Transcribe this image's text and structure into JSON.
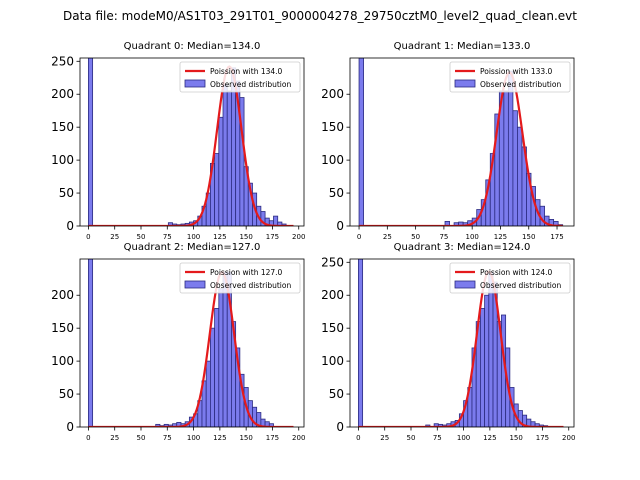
{
  "suptitle": "Data file: modeM0/AS1T03_291T01_9000004278_29750cztM0_level2_quad_clean.evt",
  "colors": {
    "bar_fill": "#7b7bed",
    "bar_edge": "#2b2b80",
    "fit_line": "#e41a1c"
  },
  "chart_data": [
    {
      "type": "bar",
      "title": "Quadrant 0: Median=134.0",
      "legend": {
        "fit_label": "Poission with 134.0",
        "hist_label": "Observed distribution",
        "position": "top-right"
      },
      "xlim": [
        -8,
        205
      ],
      "ylim": [
        0,
        255
      ],
      "xticks": [
        0,
        25,
        50,
        75,
        100,
        125,
        150,
        175,
        200
      ],
      "yticks": [
        0,
        50,
        100,
        150,
        200,
        250
      ],
      "bin_width": 4,
      "fit": {
        "mean": 134,
        "sigma": 11.6,
        "peak": 242
      },
      "bins": [
        [
          0,
          255
        ],
        [
          76,
          5
        ],
        [
          80,
          3
        ],
        [
          84,
          2
        ],
        [
          88,
          3
        ],
        [
          92,
          4
        ],
        [
          96,
          6
        ],
        [
          100,
          8
        ],
        [
          104,
          15
        ],
        [
          108,
          30
        ],
        [
          112,
          50
        ],
        [
          116,
          95
        ],
        [
          120,
          110
        ],
        [
          124,
          165
        ],
        [
          128,
          215
        ],
        [
          132,
          205
        ],
        [
          136,
          240
        ],
        [
          140,
          220
        ],
        [
          144,
          195
        ],
        [
          148,
          90
        ],
        [
          152,
          65
        ],
        [
          156,
          50
        ],
        [
          160,
          30
        ],
        [
          164,
          22
        ],
        [
          168,
          12
        ],
        [
          172,
          8
        ],
        [
          176,
          15
        ],
        [
          180,
          6
        ],
        [
          184,
          3
        ]
      ]
    },
    {
      "type": "bar",
      "title": "Quadrant 1: Median=133.0",
      "legend": {
        "fit_label": "Poission with 133.0",
        "hist_label": "Observed distribution",
        "position": "top-right"
      },
      "xlim": [
        -8,
        190
      ],
      "ylim": [
        0,
        255
      ],
      "xticks": [
        0,
        25,
        50,
        75,
        100,
        125,
        150,
        175
      ],
      "yticks": [
        0,
        50,
        100,
        150,
        200
      ],
      "bin_width": 4,
      "fit": {
        "mean": 133,
        "sigma": 11.4,
        "peak": 233
      },
      "bins": [
        [
          0,
          255
        ],
        [
          76,
          7
        ],
        [
          84,
          5
        ],
        [
          88,
          6
        ],
        [
          92,
          5
        ],
        [
          96,
          8
        ],
        [
          100,
          12
        ],
        [
          104,
          25
        ],
        [
          108,
          40
        ],
        [
          112,
          70
        ],
        [
          116,
          110
        ],
        [
          120,
          170
        ],
        [
          124,
          205
        ],
        [
          128,
          205
        ],
        [
          132,
          235
        ],
        [
          136,
          175
        ],
        [
          140,
          150
        ],
        [
          144,
          120
        ],
        [
          148,
          80
        ],
        [
          152,
          60
        ],
        [
          156,
          40
        ],
        [
          160,
          30
        ],
        [
          164,
          15
        ],
        [
          168,
          10
        ],
        [
          172,
          7
        ],
        [
          176,
          2
        ]
      ]
    },
    {
      "type": "bar",
      "title": "Quadrant 2: Median=127.0",
      "legend": {
        "fit_label": "Poission with 127.0",
        "hist_label": "Observed distribution",
        "position": "top-right"
      },
      "xlim": [
        -8,
        205
      ],
      "ylim": [
        0,
        255
      ],
      "xticks": [
        0,
        25,
        50,
        75,
        100,
        125,
        150,
        175,
        200
      ],
      "yticks": [
        0,
        50,
        100,
        150,
        200
      ],
      "bin_width": 4,
      "fit": {
        "mean": 127,
        "sigma": 11.5,
        "peak": 235
      },
      "bins": [
        [
          0,
          255
        ],
        [
          64,
          4
        ],
        [
          68,
          2
        ],
        [
          72,
          4
        ],
        [
          76,
          3
        ],
        [
          80,
          5
        ],
        [
          84,
          7
        ],
        [
          88,
          5
        ],
        [
          92,
          8
        ],
        [
          96,
          15
        ],
        [
          100,
          20
        ],
        [
          104,
          40
        ],
        [
          108,
          70
        ],
        [
          112,
          100
        ],
        [
          116,
          150
        ],
        [
          120,
          180
        ],
        [
          124,
          210
        ],
        [
          128,
          235
        ],
        [
          132,
          235
        ],
        [
          136,
          160
        ],
        [
          140,
          120
        ],
        [
          144,
          80
        ],
        [
          148,
          60
        ],
        [
          152,
          40
        ],
        [
          156,
          30
        ],
        [
          160,
          22
        ],
        [
          164,
          12
        ],
        [
          168,
          8
        ],
        [
          172,
          5
        ]
      ]
    },
    {
      "type": "bar",
      "title": "Quadrant 3: Median=124.0",
      "legend": {
        "fit_label": "Poission with 124.0",
        "hist_label": "Observed distribution",
        "position": "top-right"
      },
      "xlim": [
        -8,
        205
      ],
      "ylim": [
        0,
        255
      ],
      "xticks": [
        0,
        25,
        50,
        75,
        100,
        125,
        150,
        175,
        200
      ],
      "yticks": [
        0,
        50,
        100,
        150,
        200,
        250
      ],
      "bin_width": 4,
      "fit": {
        "mean": 124,
        "sigma": 11.2,
        "peak": 236
      },
      "bins": [
        [
          0,
          255
        ],
        [
          64,
          3
        ],
        [
          72,
          5
        ],
        [
          76,
          4
        ],
        [
          80,
          3
        ],
        [
          84,
          5
        ],
        [
          88,
          8
        ],
        [
          92,
          10
        ],
        [
          96,
          20
        ],
        [
          100,
          40
        ],
        [
          104,
          60
        ],
        [
          108,
          120
        ],
        [
          112,
          160
        ],
        [
          116,
          180
        ],
        [
          120,
          200
        ],
        [
          124,
          235
        ],
        [
          128,
          220
        ],
        [
          132,
          160
        ],
        [
          136,
          170
        ],
        [
          140,
          120
        ],
        [
          144,
          60
        ],
        [
          148,
          35
        ],
        [
          152,
          25
        ],
        [
          156,
          18
        ],
        [
          160,
          12
        ],
        [
          164,
          8
        ],
        [
          168,
          5
        ],
        [
          172,
          3
        ],
        [
          176,
          2
        ]
      ]
    }
  ]
}
